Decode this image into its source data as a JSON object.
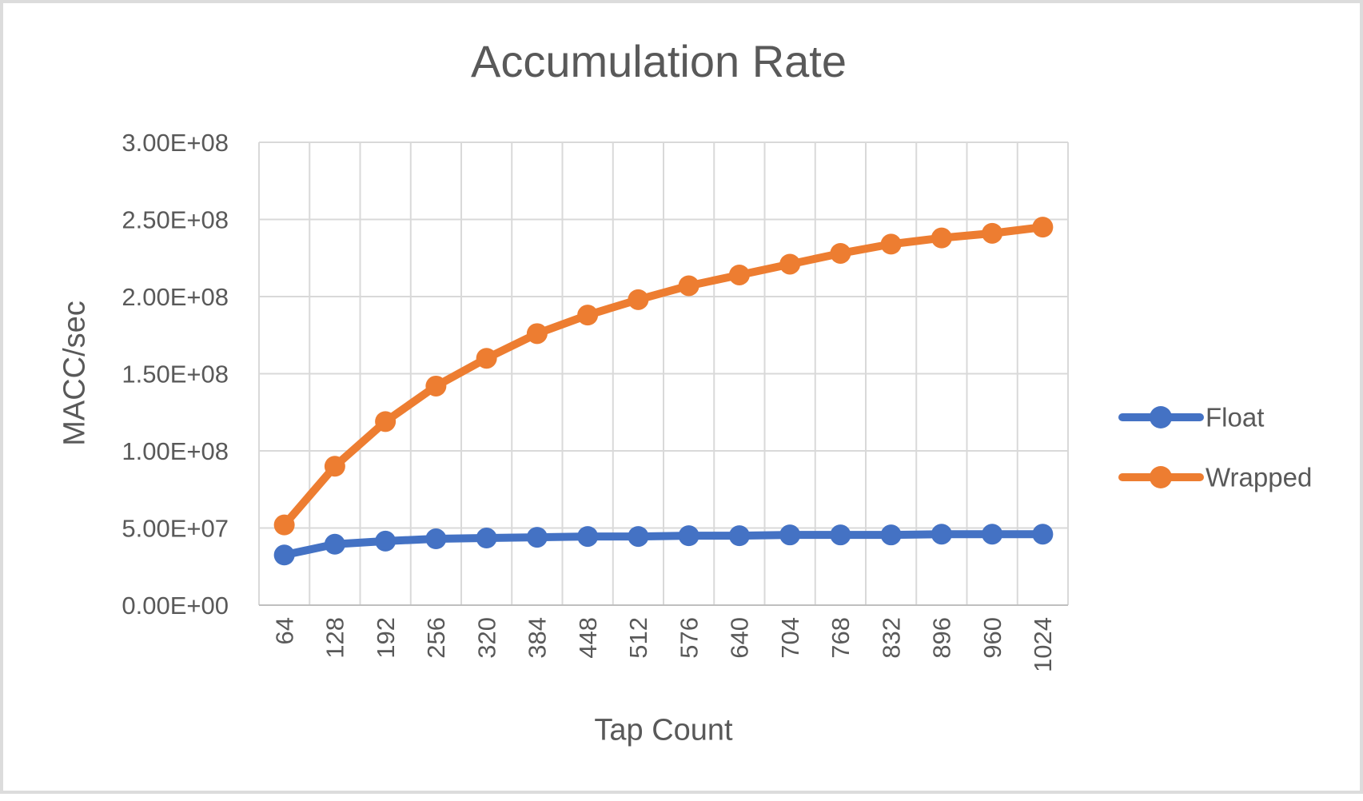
{
  "chart_data": {
    "type": "line",
    "title": "Accumulation Rate",
    "xlabel": "Tap Count",
    "ylabel": "MACC/sec",
    "categories": [
      64,
      128,
      192,
      256,
      320,
      384,
      448,
      512,
      576,
      640,
      704,
      768,
      832,
      896,
      960,
      1024
    ],
    "series": [
      {
        "name": "Float",
        "color": "#4472C4",
        "values": [
          32500000,
          39500000,
          41500000,
          43000000,
          43500000,
          44000000,
          44500000,
          44500000,
          45000000,
          45000000,
          45500000,
          45500000,
          45500000,
          46000000,
          46000000,
          46000000
        ]
      },
      {
        "name": "Wrapped",
        "color": "#ED7D31",
        "values": [
          52000000,
          90000000,
          119000000,
          142000000,
          160000000,
          176000000,
          188000000,
          198000000,
          207000000,
          214000000,
          221000000,
          228000000,
          234000000,
          238000000,
          241000000,
          245000000
        ]
      }
    ],
    "y_ticks": [
      {
        "value": 0,
        "label": "0.00E+00"
      },
      {
        "value": 50000000,
        "label": "5.00E+07"
      },
      {
        "value": 100000000,
        "label": "1.00E+08"
      },
      {
        "value": 150000000,
        "label": "1.50E+08"
      },
      {
        "value": 200000000,
        "label": "2.00E+08"
      },
      {
        "value": 250000000,
        "label": "2.50E+08"
      },
      {
        "value": 300000000,
        "label": "3.00E+08"
      }
    ],
    "ylim": [
      0,
      300000000
    ],
    "grid": true,
    "legend_position": "right",
    "colors": {
      "text": "#595959",
      "gridline": "#d9d9d9",
      "axis_line": "#bfbfbf",
      "frame_border": "#dcdcdc",
      "background": "#ffffff"
    }
  }
}
